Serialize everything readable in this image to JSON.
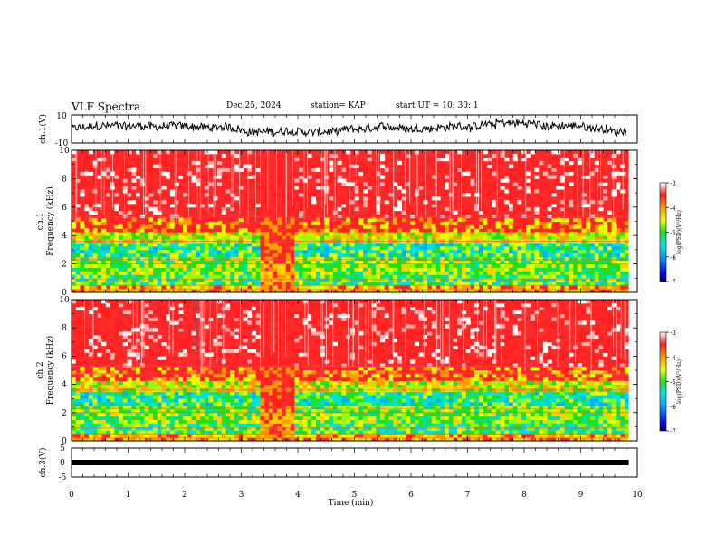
{
  "header": {
    "title": "VLF Spectra",
    "date": "Dec.25, 2024",
    "station": "station= KAP",
    "start": "start  UT  =   10: 30: 1"
  },
  "colors": {
    "red": "#ff2020",
    "orange": "#ff9a00",
    "yellow": "#e8ff00",
    "green": "#20e020",
    "cyan": "#00e0e0",
    "blue": "#0030ff",
    "dark": "#000060"
  },
  "chart_data": [
    {
      "type": "line",
      "name": "ch1-waveform",
      "ylabel": "ch.1(V)",
      "ylim": [
        -10,
        10
      ],
      "yticks": [
        "10",
        "-10"
      ],
      "xlim": [
        0,
        10
      ],
      "description_values_mean": 0,
      "noise_amplitude_v": 3
    },
    {
      "type": "heatmap",
      "name": "ch1-spectrogram",
      "ylabel": "ch.1 Frequency  (kHz)",
      "ylim": [
        0,
        10
      ],
      "yticks": [
        "0",
        "2",
        "4",
        "6",
        "8",
        "10"
      ],
      "xlim": [
        0,
        9.85
      ],
      "quiet_interval_min": [
        3.3,
        3.9
      ],
      "colorbar": {
        "label": "log(PSD)(V²/Hz)",
        "ticks": [
          "-3",
          "-4",
          "-5",
          "-6",
          "-7"
        ],
        "range": [
          -7,
          -3
        ]
      }
    },
    {
      "type": "heatmap",
      "name": "ch2-spectrogram",
      "ylabel": "ch.2 Frequency  (kHz)",
      "ylim": [
        0,
        10
      ],
      "yticks": [
        "0",
        "2",
        "4",
        "6",
        "8",
        "10"
      ],
      "xlim": [
        0,
        9.85
      ],
      "quiet_interval_min": [
        3.3,
        3.9
      ],
      "colorbar": {
        "label": "log(PSD)(V²/Hz)",
        "ticks": [
          "-3",
          "-4",
          "-5",
          "-6",
          "-7"
        ],
        "range": [
          -7,
          -3
        ]
      }
    },
    {
      "type": "line",
      "name": "ch3-waveform",
      "ylabel": "ch.3(V)",
      "ylim": [
        -5,
        5
      ],
      "yticks": [
        "5",
        "0",
        "-5"
      ],
      "xlim": [
        0,
        10
      ],
      "constant_value_v": 0
    }
  ],
  "xaxis": {
    "label": "Time  (min)",
    "ticks": [
      "0",
      "1",
      "2",
      "3",
      "4",
      "5",
      "6",
      "7",
      "8",
      "9",
      "10"
    ]
  }
}
